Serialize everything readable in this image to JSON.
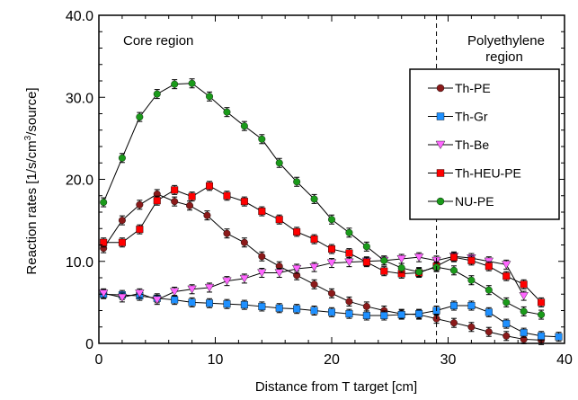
{
  "chart_data": {
    "type": "line",
    "xlabel": "Distance from T target [cm]",
    "ylabel": {
      "pre": "Reaction rates [1/s/cm",
      "sup": "3",
      "post": "/source]"
    },
    "xlim": [
      0,
      40
    ],
    "ylim": [
      0,
      40
    ],
    "xticks": [
      0,
      10,
      20,
      30,
      40
    ],
    "yticks": [
      0,
      10.0,
      20.0,
      30.0,
      40.0
    ],
    "ytick_labels": [
      "0",
      "10.0",
      "20.0",
      "30.0",
      "40.0"
    ],
    "divider_x": 29,
    "annotations": {
      "core": "Core region",
      "poly_line1": "Polyethylene",
      "poly_line2": "region"
    },
    "legend_placement": "right",
    "series": [
      {
        "name": "Th-PE",
        "color": "#8b1a1a",
        "marker": "circle",
        "x": [
          0.4,
          2,
          3.5,
          5,
          6.5,
          7.8,
          9.3,
          11,
          12.5,
          14,
          15.5,
          17,
          18.5,
          20,
          21.5,
          23,
          24.5,
          26,
          27.5,
          29,
          30.5,
          32,
          33.5,
          35,
          36.5,
          38
        ],
        "y": [
          11.6,
          15.0,
          16.9,
          18.2,
          17.3,
          16.8,
          15.6,
          13.4,
          12.3,
          10.6,
          9.4,
          8.3,
          7.2,
          6.1,
          5.1,
          4.5,
          4.0,
          3.6,
          3.5,
          3.0,
          2.5,
          2.0,
          1.4,
          0.9,
          0.5,
          0.4
        ]
      },
      {
        "name": "Th-Gr",
        "color": "#1e90ff",
        "marker": "square",
        "x": [
          0.4,
          2,
          3.5,
          5,
          6.5,
          8,
          9.5,
          11,
          12.5,
          14,
          15.5,
          17,
          18.5,
          20,
          21.5,
          23,
          24.5,
          26,
          27.5,
          29,
          30.5,
          32,
          33.5,
          35,
          36.5,
          38,
          39.5
        ],
        "y": [
          6.0,
          5.9,
          5.8,
          5.5,
          5.3,
          5.0,
          4.9,
          4.8,
          4.7,
          4.5,
          4.3,
          4.2,
          4.0,
          3.8,
          3.6,
          3.4,
          3.4,
          3.5,
          3.6,
          4.0,
          4.6,
          4.6,
          3.8,
          2.4,
          1.3,
          0.9,
          0.8
        ]
      },
      {
        "name": "Th-Be",
        "color": "#ff66ff",
        "marker": "triangle-down",
        "x": [
          0.4,
          2,
          3.5,
          5,
          6.5,
          8,
          9.5,
          11,
          12.5,
          14,
          15.5,
          17,
          18.5,
          20,
          21.5,
          23,
          24.5,
          26,
          27.5,
          29,
          30.5,
          32,
          33.5,
          35,
          36.5
        ],
        "y": [
          6.1,
          5.6,
          6.1,
          5.3,
          6.3,
          6.6,
          6.8,
          7.6,
          7.9,
          8.6,
          8.6,
          9.1,
          9.3,
          9.8,
          9.9,
          10.0,
          10.1,
          10.3,
          10.5,
          10.1,
          10.6,
          10.4,
          10.0,
          9.6,
          5.8
        ]
      },
      {
        "name": "Th-HEU-PE",
        "color": "#ff0000",
        "marker": "square",
        "x": [
          0.4,
          2,
          3.5,
          5,
          6.5,
          8,
          9.5,
          11,
          12.5,
          14,
          15.5,
          17,
          18.5,
          20,
          21.5,
          23,
          24.5,
          26,
          27.5,
          29,
          30.5,
          32,
          33.5,
          35,
          36.5,
          38
        ],
        "y": [
          12.3,
          12.3,
          13.9,
          17.4,
          18.7,
          17.9,
          19.2,
          18.0,
          17.3,
          16.1,
          15.1,
          13.6,
          12.7,
          11.5,
          11.0,
          9.9,
          8.8,
          8.5,
          8.6,
          9.4,
          10.5,
          10.1,
          9.4,
          8.2,
          7.2,
          5.0
        ]
      },
      {
        "name": "NU-PE",
        "color": "#1a9a1a",
        "marker": "circle",
        "x": [
          0.4,
          2,
          3.5,
          5,
          6.5,
          8,
          9.5,
          11,
          12.5,
          14,
          15.5,
          17,
          18.5,
          20,
          21.5,
          23,
          24.5,
          26,
          27.5,
          29,
          30.5,
          32,
          33.5,
          35,
          36.5,
          38
        ],
        "y": [
          17.2,
          22.6,
          27.6,
          30.4,
          31.6,
          31.7,
          30.1,
          28.2,
          26.5,
          24.9,
          22.0,
          19.7,
          17.6,
          15.1,
          13.5,
          11.8,
          10.1,
          9.2,
          8.7,
          9.3,
          8.9,
          7.7,
          6.5,
          5.0,
          3.9,
          3.5
        ]
      }
    ]
  }
}
